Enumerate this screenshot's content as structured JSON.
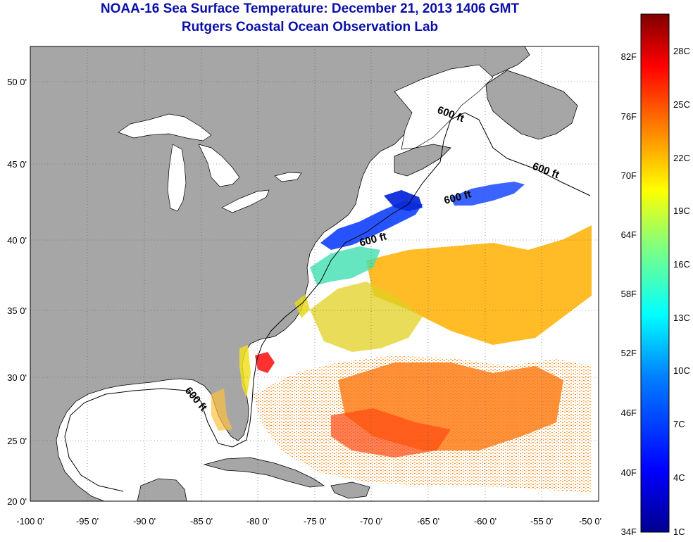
{
  "header": {
    "title": "NOAA-16 Sea Surface Temperature:  December 21, 2013 1406 GMT",
    "subtitle": "Rutgers Coastal Ocean Observation Lab"
  },
  "axes": {
    "lon_ticks": [
      "-100 0'",
      "-95 0'",
      "-90 0'",
      "-85 0'",
      "-80 0'",
      "-75 0'",
      "-70 0'",
      "-65 0'",
      "-60 0'",
      "-55 0'",
      "-50 0'"
    ],
    "lat_ticks": [
      "50 0'",
      "45 0'",
      "40 0'",
      "35 0'",
      "30 0'",
      "25 0'",
      "20 0'"
    ]
  },
  "map": {
    "lon_range": [
      -100,
      -50
    ],
    "lat_range": [
      20,
      52
    ],
    "land_color": "#a6a6a6",
    "ocean_no_data_color": "#ffffff",
    "grid": "dotted",
    "contour_labels": [
      "600 ft",
      "600 ft",
      "600 ft",
      "600 ft",
      "600 ft"
    ]
  },
  "colorbar": {
    "f_labels": [
      "82F",
      "76F",
      "70F",
      "64F",
      "58F",
      "52F",
      "46F",
      "40F",
      "34F"
    ],
    "c_labels": [
      "28C",
      "25C",
      "22C",
      "19C",
      "16C",
      "13C",
      "10C",
      "7C",
      "4C",
      "1C"
    ],
    "range_c": [
      1,
      31
    ],
    "colors": [
      "#00008f",
      "#0000ff",
      "#0080ff",
      "#00ffff",
      "#80ff80",
      "#ffff00",
      "#ff8000",
      "#ff0000",
      "#800000"
    ]
  }
}
